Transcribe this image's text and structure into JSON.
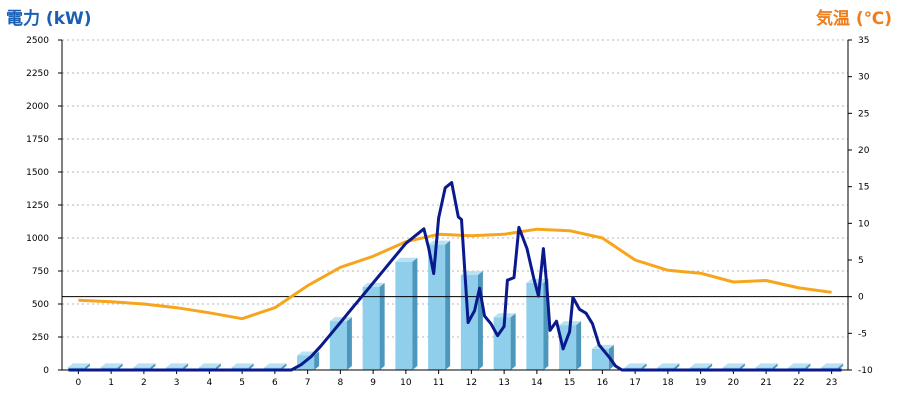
{
  "chart_data": {
    "type": "bar",
    "title_left": "電力 (kW)",
    "title_right": "気温 (℃)",
    "x": [
      "0",
      "1",
      "2",
      "3",
      "4",
      "5",
      "6",
      "7",
      "8",
      "9",
      "10",
      "11",
      "12",
      "13",
      "14",
      "15",
      "16",
      "17",
      "18",
      "19",
      "20",
      "21",
      "22",
      "23"
    ],
    "y_left_ticks": [
      "0",
      "250",
      "500",
      "750",
      "1000",
      "1250",
      "1500",
      "1750",
      "2000",
      "2250",
      "2500"
    ],
    "y_right_ticks": [
      "-10",
      "-5",
      "0",
      "5",
      "10",
      "15",
      "20",
      "25",
      "30",
      "35"
    ],
    "ylim_left": [
      0,
      2500
    ],
    "ylim_right": [
      -10,
      35
    ],
    "grid": true,
    "bars": {
      "name": "電力",
      "values": [
        20,
        20,
        20,
        20,
        20,
        20,
        20,
        110,
        370,
        630,
        820,
        950,
        720,
        400,
        660,
        340,
        160,
        20,
        20,
        20,
        20,
        20,
        20,
        20
      ]
    },
    "temperature": {
      "name": "気温",
      "x": [
        0,
        1,
        2,
        3,
        4,
        5,
        6,
        7,
        8,
        9,
        10,
        11,
        12,
        13,
        14,
        15,
        16,
        17,
        18,
        19,
        20,
        21,
        22,
        23
      ],
      "values": [
        -0.5,
        -0.7,
        -1.0,
        -1.5,
        -2.2,
        -3.0,
        -1.5,
        1.5,
        4.0,
        5.5,
        7.5,
        8.5,
        8.3,
        8.5,
        9.2,
        9.0,
        8.0,
        5.0,
        3.6,
        3.2,
        2.0,
        2.2,
        1.2,
        0.6
      ]
    },
    "power_line": {
      "name": "電力",
      "points": [
        [
          -0.3,
          0
        ],
        [
          6.5,
          0
        ],
        [
          6.8,
          40
        ],
        [
          7.1,
          100
        ],
        [
          7.4,
          180
        ],
        [
          7.7,
          270
        ],
        [
          8.0,
          360
        ],
        [
          8.4,
          480
        ],
        [
          8.8,
          600
        ],
        [
          9.2,
          720
        ],
        [
          9.6,
          840
        ],
        [
          10.0,
          960
        ],
        [
          10.3,
          1020
        ],
        [
          10.55,
          1070
        ],
        [
          10.7,
          920
        ],
        [
          10.85,
          730
        ],
        [
          11.0,
          1150
        ],
        [
          11.2,
          1380
        ],
        [
          11.4,
          1420
        ],
        [
          11.6,
          1160
        ],
        [
          11.7,
          1140
        ],
        [
          11.9,
          360
        ],
        [
          12.1,
          450
        ],
        [
          12.25,
          620
        ],
        [
          12.4,
          410
        ],
        [
          12.6,
          350
        ],
        [
          12.8,
          260
        ],
        [
          13.0,
          330
        ],
        [
          13.1,
          680
        ],
        [
          13.3,
          700
        ],
        [
          13.45,
          1080
        ],
        [
          13.7,
          920
        ],
        [
          13.9,
          700
        ],
        [
          14.05,
          560
        ],
        [
          14.2,
          920
        ],
        [
          14.3,
          650
        ],
        [
          14.4,
          300
        ],
        [
          14.6,
          370
        ],
        [
          14.8,
          160
        ],
        [
          15.0,
          290
        ],
        [
          15.1,
          550
        ],
        [
          15.3,
          460
        ],
        [
          15.5,
          430
        ],
        [
          15.7,
          350
        ],
        [
          15.9,
          190
        ],
        [
          16.2,
          100
        ],
        [
          16.4,
          30
        ],
        [
          16.6,
          0
        ],
        [
          23.3,
          0
        ]
      ]
    }
  }
}
